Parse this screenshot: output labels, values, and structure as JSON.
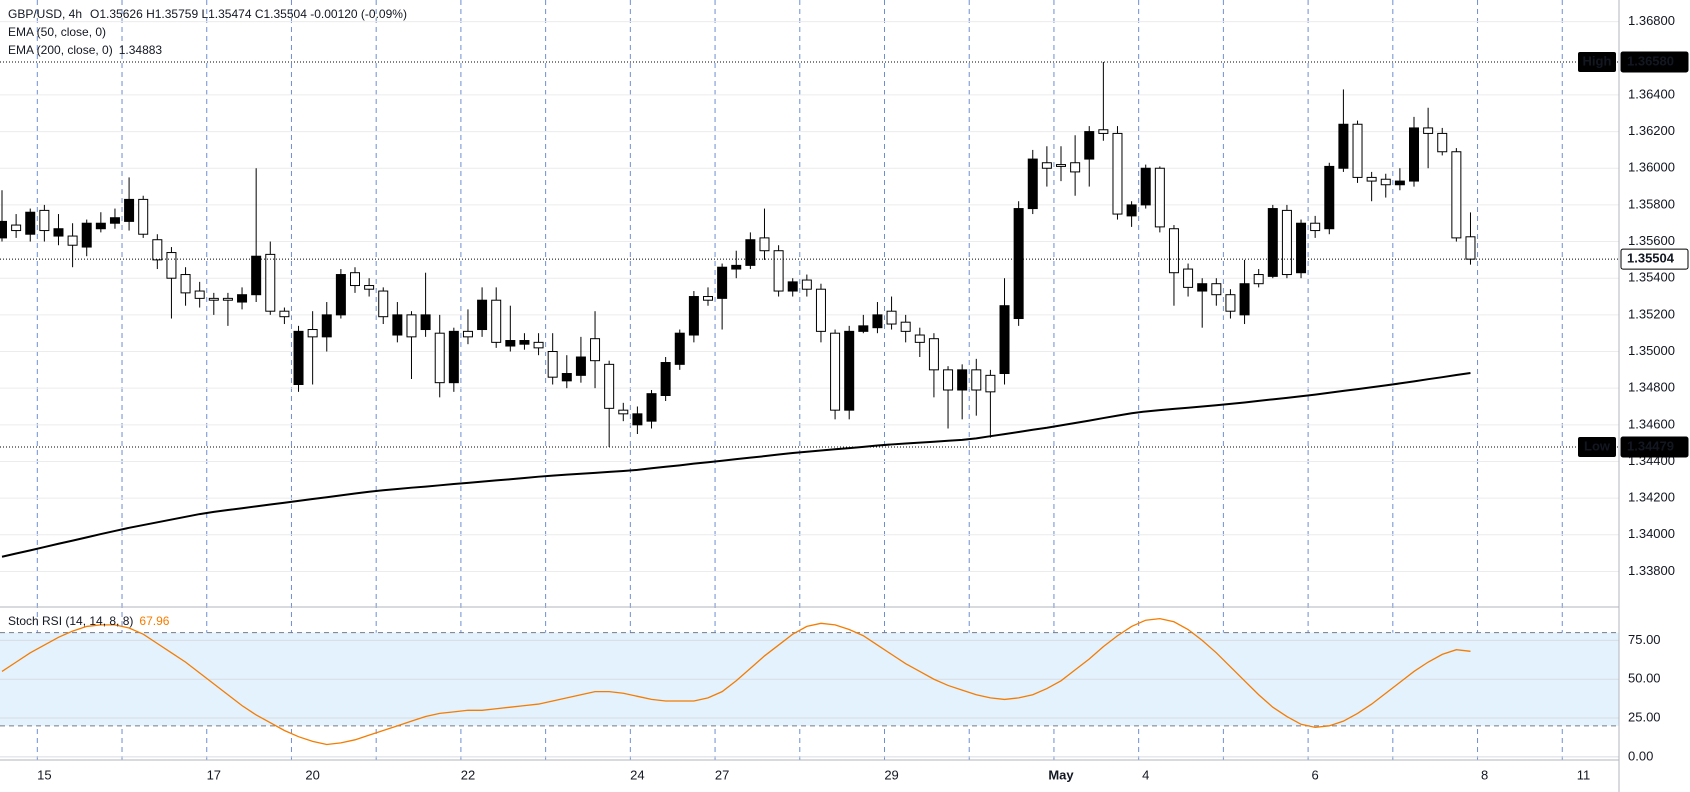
{
  "chart_data": [
    {
      "type": "candlestick",
      "title": "GBP/USD, 4h",
      "header_stats": "O1.35626  H1.35759  L1.35474  C1.35504  -0.00120 (-0.09%)",
      "indicators": [
        "EMA (50, close, 0)"
      ],
      "categories": [
        null,
        null,
        null,
        "15",
        null,
        null,
        null,
        null,
        null,
        null,
        null,
        null,
        null,
        null,
        null,
        "17",
        null,
        null,
        null,
        null,
        null,
        null,
        "20",
        null,
        null,
        null,
        null,
        null,
        null,
        null,
        null,
        null,
        null,
        "22",
        null,
        null,
        null,
        null,
        null,
        null,
        null,
        null,
        null,
        null,
        null,
        "24",
        null,
        null,
        null,
        null,
        null,
        "27",
        null,
        null,
        null,
        null,
        null,
        null,
        null,
        null,
        null,
        null,
        null,
        "29",
        null,
        null,
        null,
        null,
        null,
        null,
        null,
        null,
        null,
        null,
        null,
        "May",
        null,
        null,
        null,
        null,
        null,
        "4",
        null,
        null,
        null,
        null,
        null,
        null,
        null,
        null,
        null,
        null,
        null,
        "6",
        null,
        null,
        null,
        null,
        null,
        null,
        null,
        null,
        null,
        null,
        null,
        "8",
        null,
        null,
        null,
        null,
        null,
        null,
        "11"
      ],
      "open": [
        1.3562,
        1.3569,
        1.3564,
        1.3577,
        1.3563,
        1.3563,
        1.3557,
        1.3567,
        1.357,
        1.3571,
        1.3583,
        1.3561,
        1.3554,
        1.3542,
        1.3533,
        1.3529,
        1.3529,
        1.3527,
        1.3531,
        1.3553,
        1.3522,
        1.3482,
        1.3512,
        1.3508,
        1.352,
        1.3543,
        1.3536,
        1.3533,
        1.3509,
        1.352,
        1.3512,
        1.351,
        1.3483,
        1.3511,
        1.3512,
        1.3528,
        1.3503,
        1.3504,
        1.3505,
        1.35,
        1.3484,
        1.3487,
        1.3507,
        1.3493,
        1.3468,
        1.346,
        1.3462,
        1.3476,
        1.3493,
        1.3509,
        1.353,
        1.3529,
        1.3545,
        1.3547,
        1.3562,
        1.3555,
        1.3533,
        1.3539,
        1.3534,
        1.351,
        1.3468,
        1.3511,
        1.3513,
        1.3522,
        1.3516,
        1.3509,
        1.3507,
        1.349,
        1.3479,
        1.349,
        1.3487,
        1.3488,
        1.3518,
        1.3578,
        1.3603,
        1.3602,
        1.3603,
        1.3605,
        1.3621,
        1.3619,
        1.3574,
        1.358,
        1.36,
        1.3567,
        1.3545,
        1.3533,
        1.3537,
        1.3531,
        1.352,
        1.3542,
        1.3541,
        1.3577,
        1.3543,
        1.357,
        1.3567,
        1.36,
        1.3624,
        1.3595,
        1.3594,
        1.3591,
        1.3593,
        1.3622,
        1.3619,
        1.3609,
        1.35626,
        null,
        null,
        null,
        null,
        null,
        null,
        null,
        null
      ],
      "high": [
        1.3588,
        1.3575,
        1.3578,
        1.358,
        1.3575,
        1.357,
        1.3572,
        1.3576,
        1.3578,
        1.3595,
        1.3585,
        1.3564,
        1.3557,
        1.3546,
        1.3538,
        1.3532,
        1.3532,
        1.3535,
        1.36,
        1.356,
        1.3524,
        1.3514,
        1.3522,
        1.3527,
        1.3545,
        1.3546,
        1.354,
        1.3535,
        1.3527,
        1.3522,
        1.3543,
        1.352,
        1.3513,
        1.3523,
        1.3535,
        1.3535,
        1.3525,
        1.351,
        1.351,
        1.351,
        1.3498,
        1.3508,
        1.3522,
        1.3495,
        1.3472,
        1.347,
        1.3479,
        1.3497,
        1.3512,
        1.3533,
        1.3535,
        1.3548,
        1.3555,
        1.3565,
        1.3578,
        1.3558,
        1.354,
        1.3542,
        1.3537,
        1.3512,
        1.3514,
        1.352,
        1.3527,
        1.353,
        1.352,
        1.3513,
        1.351,
        1.3492,
        1.3493,
        1.3496,
        1.349,
        1.354,
        1.3582,
        1.361,
        1.3612,
        1.3612,
        1.3618,
        1.3623,
        1.3658,
        1.3623,
        1.3582,
        1.3602,
        1.3601,
        1.3569,
        1.3548,
        1.354,
        1.354,
        1.3534,
        1.355,
        1.3545,
        1.358,
        1.358,
        1.3572,
        1.3574,
        1.3603,
        1.3643,
        1.3626,
        1.3598,
        1.3597,
        1.36,
        1.3628,
        1.3633,
        1.3622,
        1.3611,
        1.35759,
        null,
        null,
        null,
        null,
        null,
        null,
        null,
        null
      ],
      "low": [
        1.356,
        1.3562,
        1.356,
        1.356,
        1.3558,
        1.3546,
        1.3552,
        1.3565,
        1.3567,
        1.3566,
        1.3562,
        1.3545,
        1.3518,
        1.3525,
        1.3524,
        1.352,
        1.3514,
        1.3523,
        1.3527,
        1.352,
        1.3515,
        1.3478,
        1.3482,
        1.35,
        1.3518,
        1.3532,
        1.353,
        1.3515,
        1.3505,
        1.3485,
        1.3508,
        1.3475,
        1.3478,
        1.3504,
        1.3508,
        1.3502,
        1.35,
        1.3501,
        1.3498,
        1.3482,
        1.348,
        1.3483,
        1.348,
        1.34479,
        1.3462,
        1.3455,
        1.3458,
        1.3473,
        1.349,
        1.3505,
        1.3525,
        1.3512,
        1.354,
        1.3545,
        1.355,
        1.353,
        1.353,
        1.353,
        1.3505,
        1.3463,
        1.3463,
        1.351,
        1.351,
        1.3512,
        1.3505,
        1.3497,
        1.3475,
        1.3458,
        1.3463,
        1.3465,
        1.3453,
        1.3482,
        1.3514,
        1.3575,
        1.359,
        1.3593,
        1.3585,
        1.359,
        1.3615,
        1.3572,
        1.3568,
        1.3578,
        1.3565,
        1.3525,
        1.353,
        1.3513,
        1.3525,
        1.3518,
        1.3515,
        1.3535,
        1.354,
        1.354,
        1.354,
        1.3562,
        1.3564,
        1.3598,
        1.3592,
        1.3582,
        1.3584,
        1.3588,
        1.359,
        1.36,
        1.3607,
        1.356,
        1.35474,
        null,
        null,
        null,
        null,
        null,
        null,
        null,
        null
      ],
      "close": [
        1.3571,
        1.3566,
        1.3576,
        1.3566,
        1.3567,
        1.3558,
        1.357,
        1.357,
        1.3573,
        1.3583,
        1.3564,
        1.355,
        1.354,
        1.3532,
        1.3529,
        1.3528,
        1.3528,
        1.3531,
        1.3552,
        1.3522,
        1.3519,
        1.3511,
        1.3508,
        1.352,
        1.3542,
        1.3536,
        1.3534,
        1.3519,
        1.352,
        1.3508,
        1.352,
        1.3483,
        1.3511,
        1.3508,
        1.3528,
        1.3505,
        1.3506,
        1.3506,
        1.3502,
        1.3486,
        1.3488,
        1.3497,
        1.3495,
        1.3469,
        1.3466,
        1.3466,
        1.3477,
        1.3494,
        1.351,
        1.353,
        1.3528,
        1.3546,
        1.3547,
        1.3561,
        1.3555,
        1.3533,
        1.3538,
        1.3534,
        1.3511,
        1.3468,
        1.3511,
        1.3514,
        1.352,
        1.3515,
        1.3511,
        1.3505,
        1.349,
        1.3479,
        1.349,
        1.3479,
        1.3478,
        1.3525,
        1.3578,
        1.3605,
        1.36,
        1.3601,
        1.3598,
        1.362,
        1.3619,
        1.3575,
        1.358,
        1.36,
        1.3568,
        1.3543,
        1.3535,
        1.3537,
        1.3531,
        1.3522,
        1.3537,
        1.3537,
        1.3578,
        1.3542,
        1.357,
        1.3566,
        1.3601,
        1.3624,
        1.3595,
        1.3593,
        1.3591,
        1.3593,
        1.3622,
        1.3619,
        1.3609,
        1.3562,
        1.35504,
        null,
        null,
        null,
        null,
        null,
        null,
        null,
        null
      ],
      "up_color": "#000000",
      "down_color": "#ffffff",
      "series": [
        {
          "name": "EMA (200, close, 0)",
          "color": "#000000",
          "last_value_label": "1.34883",
          "values": [
            1.3388,
            1.33898,
            1.33915,
            1.33933,
            1.33951,
            1.33968,
            1.33986,
            1.34004,
            1.34021,
            1.34038,
            1.34053,
            1.34068,
            1.34083,
            1.34098,
            1.34113,
            1.34125,
            1.34135,
            1.34145,
            1.34155,
            1.34165,
            1.34175,
            1.34185,
            1.34195,
            1.34205,
            1.34215,
            1.34225,
            1.34235,
            1.34243,
            1.3425,
            1.34257,
            1.34263,
            1.3427,
            1.34277,
            1.34283,
            1.3429,
            1.34297,
            1.34303,
            1.3431,
            1.34317,
            1.34323,
            1.34328,
            1.34333,
            1.34338,
            1.34343,
            1.34348,
            1.34354,
            1.34363,
            1.34371,
            1.34379,
            1.34388,
            1.34396,
            1.34404,
            1.34413,
            1.34421,
            1.34429,
            1.34438,
            1.34446,
            1.34453,
            1.3446,
            1.34467,
            1.34473,
            1.3448,
            1.34487,
            1.34493,
            1.34498,
            1.34503,
            1.34508,
            1.34513,
            1.34518,
            1.34526,
            1.34538,
            1.34549,
            1.34561,
            1.34573,
            1.34584,
            1.34597,
            1.3461,
            1.34623,
            1.34637,
            1.3465,
            1.34663,
            1.34673,
            1.3468,
            1.34687,
            1.34693,
            1.347,
            1.34707,
            1.34714,
            1.34722,
            1.34731,
            1.34739,
            1.34747,
            1.34756,
            1.34765,
            1.34775,
            1.34785,
            1.34795,
            1.34805,
            1.34815,
            1.34826,
            1.34837,
            1.34849,
            1.3486,
            1.34872,
            1.34883,
            null,
            null,
            null,
            null,
            null,
            null,
            null,
            null
          ]
        }
      ],
      "markers": [
        {
          "label": "High",
          "value": 1.3658,
          "value_label": "1.36580",
          "style": "filled"
        },
        {
          "label": "Low",
          "value": 1.34479,
          "value_label": "1.34479",
          "style": "filled"
        },
        {
          "value": 1.35504,
          "value_label": "1.35504",
          "style": "outlined"
        }
      ],
      "ylim": [
        1.33606,
        1.36918
      ],
      "yticks": [
        {
          "value": 1.368,
          "label": "1.36800"
        },
        {
          "value": 1.364,
          "label": "1.36400"
        },
        {
          "value": 1.362,
          "label": "1.36200"
        },
        {
          "value": 1.36,
          "label": "1.36000"
        },
        {
          "value": 1.358,
          "label": "1.35800"
        },
        {
          "value": 1.356,
          "label": "1.35600"
        },
        {
          "value": 1.354,
          "label": "1.35400"
        },
        {
          "value": 1.352,
          "label": "1.35200"
        },
        {
          "value": 1.35,
          "label": "1.35000"
        },
        {
          "value": 1.348,
          "label": "1.34800"
        },
        {
          "value": 1.346,
          "label": "1.34600"
        },
        {
          "value": 1.344,
          "label": "1.34400"
        },
        {
          "value": 1.342,
          "label": "1.34200"
        },
        {
          "value": 1.34,
          "label": "1.34000"
        },
        {
          "value": 1.338,
          "label": "1.33800"
        }
      ],
      "grid": true
    },
    {
      "type": "line",
      "series": [
        {
          "name": "Stoch RSI (14, 14, 8, 8)",
          "color": "#f57c00",
          "last_value_label": "67.96",
          "values": [
            55,
            61,
            67,
            72,
            77,
            81,
            84,
            85,
            85,
            83,
            79,
            73,
            67,
            61,
            54,
            47,
            40,
            33,
            27,
            22,
            17,
            13,
            10,
            8,
            9,
            11,
            14,
            17,
            20,
            23,
            26,
            28,
            29,
            30,
            30,
            31,
            32,
            33,
            34,
            36,
            38,
            40,
            42,
            42,
            41,
            39,
            37,
            36,
            36,
            36,
            38,
            42,
            49,
            57,
            65,
            72,
            79,
            84,
            86,
            85,
            82,
            78,
            72,
            66,
            60,
            55,
            50,
            46,
            43,
            40,
            38,
            37,
            38,
            40,
            44,
            49,
            56,
            63,
            71,
            78,
            84,
            88,
            89,
            87,
            82,
            75,
            67,
            58,
            49,
            40,
            32,
            26,
            21,
            19,
            20,
            23,
            28,
            34,
            41,
            48,
            55,
            61,
            66,
            69,
            67.96,
            null,
            null,
            null,
            null,
            null,
            null,
            null,
            null
          ]
        }
      ],
      "ylim": [
        -2,
        96.5
      ],
      "yticks": [
        {
          "value": 75,
          "label": "75.00"
        },
        {
          "value": 50,
          "label": "50.00"
        },
        {
          "value": 25,
          "label": "25.00"
        },
        {
          "value": 0,
          "label": "0.00"
        }
      ],
      "band": [
        20,
        80
      ],
      "band_color": "#e3f2fd",
      "grid": true
    }
  ]
}
